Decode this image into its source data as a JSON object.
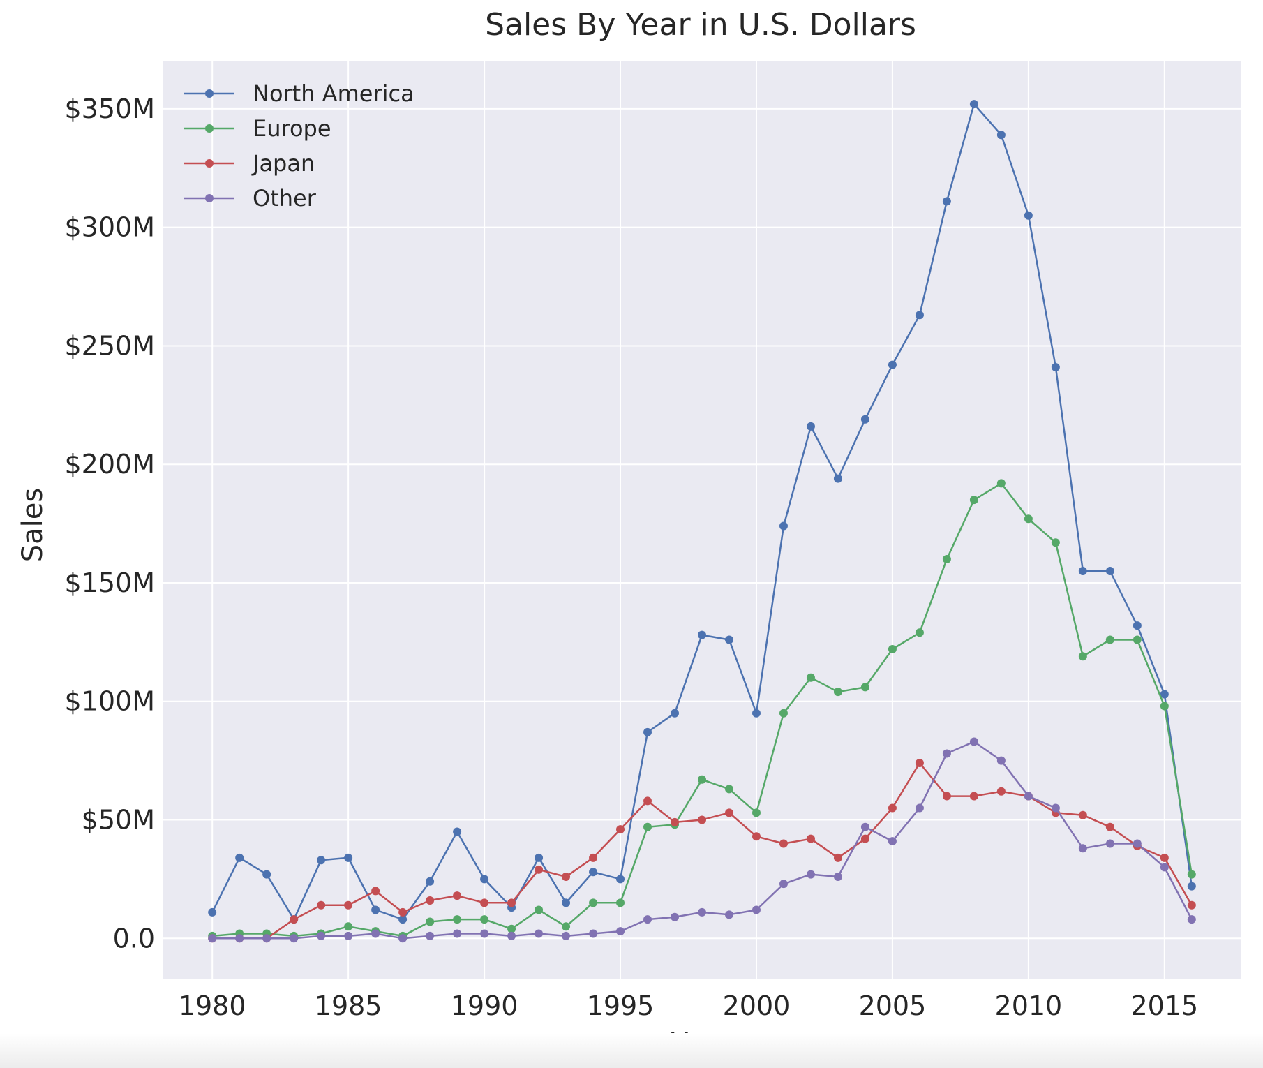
{
  "chart_data": {
    "type": "line",
    "title": "Sales By Year in U.S. Dollars",
    "xlabel": "Year",
    "ylabel": "Sales",
    "xlim": [
      1978.2,
      2017.8
    ],
    "ylim": [
      -17,
      370
    ],
    "xticks": [
      1980,
      1985,
      1990,
      1995,
      2000,
      2005,
      2010,
      2015
    ],
    "xtick_labels": [
      "1980",
      "1985",
      "1990",
      "1995",
      "2000",
      "2005",
      "2010",
      "2015"
    ],
    "yticks": [
      0,
      50,
      100,
      150,
      200,
      250,
      300,
      350
    ],
    "ytick_labels": [
      "0.0",
      "$50M",
      "$100M",
      "$150M",
      "$200M",
      "$250M",
      "$300M",
      "$350M"
    ],
    "grid": true,
    "legend_position": "top-left",
    "x": [
      1980,
      1981,
      1982,
      1983,
      1984,
      1985,
      1986,
      1987,
      1988,
      1989,
      1990,
      1991,
      1992,
      1993,
      1994,
      1995,
      1996,
      1997,
      1998,
      1999,
      2000,
      2001,
      2002,
      2003,
      2004,
      2005,
      2006,
      2007,
      2008,
      2009,
      2010,
      2011,
      2012,
      2013,
      2014,
      2015,
      2016
    ],
    "series": [
      {
        "name": "North America",
        "color": "#4c72b0",
        "values": [
          11,
          34,
          27,
          8,
          33,
          34,
          12,
          8,
          24,
          45,
          25,
          13,
          34,
          15,
          28,
          25,
          87,
          95,
          128,
          126,
          95,
          174,
          216,
          194,
          219,
          242,
          263,
          311,
          352,
          339,
          305,
          241,
          155,
          155,
          132,
          103,
          22
        ]
      },
      {
        "name": "Europe",
        "color": "#55a868",
        "values": [
          1,
          2,
          2,
          1,
          2,
          5,
          3,
          1,
          7,
          8,
          8,
          4,
          12,
          5,
          15,
          15,
          47,
          48,
          67,
          63,
          53,
          95,
          110,
          104,
          106,
          122,
          129,
          160,
          185,
          192,
          177,
          167,
          119,
          126,
          126,
          98,
          27
        ]
      },
      {
        "name": "Japan",
        "color": "#c44e52",
        "values": [
          0,
          0,
          0,
          8,
          14,
          14,
          20,
          11,
          16,
          18,
          15,
          15,
          29,
          26,
          34,
          46,
          58,
          49,
          50,
          53,
          43,
          40,
          42,
          34,
          42,
          55,
          74,
          60,
          60,
          62,
          60,
          53,
          52,
          47,
          39,
          34,
          14
        ]
      },
      {
        "name": "Other",
        "color": "#8172b2",
        "values": [
          0,
          0,
          0,
          0,
          1,
          1,
          2,
          0,
          1,
          2,
          2,
          1,
          2,
          1,
          2,
          3,
          8,
          9,
          11,
          10,
          12,
          23,
          27,
          26,
          47,
          41,
          55,
          78,
          83,
          75,
          60,
          55,
          38,
          40,
          40,
          30,
          8
        ]
      }
    ]
  }
}
